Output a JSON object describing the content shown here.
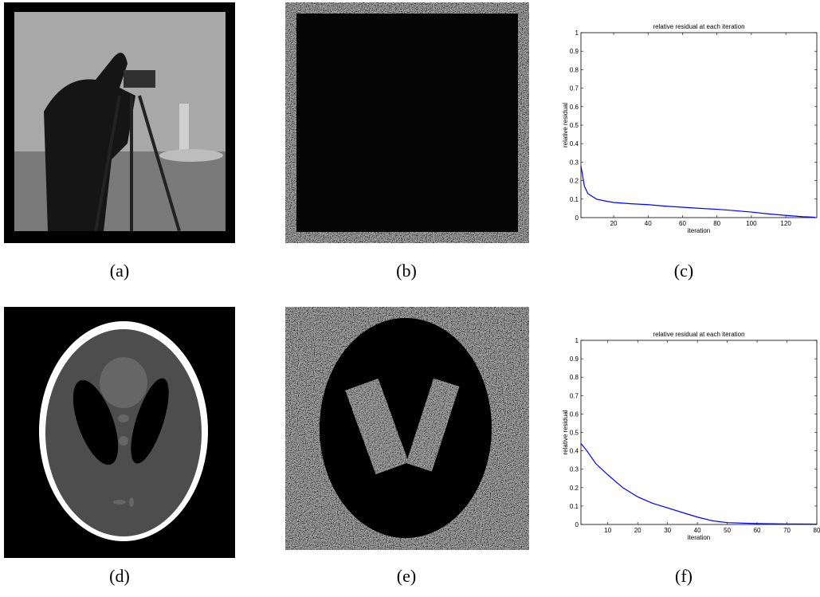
{
  "captions": [
    "(a)",
    "(b)",
    "(c)",
    "(d)",
    "(e)",
    "(f)"
  ],
  "chart_data": [
    {
      "type": "line",
      "title": "relative residual at each iteration",
      "x_label": "iteration",
      "y_label": "relative residual",
      "x": [
        1,
        3,
        5,
        10,
        15,
        20,
        30,
        40,
        50,
        60,
        70,
        80,
        90,
        100,
        110,
        120,
        130,
        137
      ],
      "series": [
        {
          "name": "relative residual",
          "color": "#0000ff",
          "values": [
            0.28,
            0.17,
            0.13,
            0.1,
            0.09,
            0.082,
            0.075,
            0.07,
            0.062,
            0.056,
            0.05,
            0.045,
            0.038,
            0.03,
            0.02,
            0.012,
            0.005,
            0.002
          ]
        }
      ],
      "xlim": [
        1,
        138
      ],
      "xticks": [
        20,
        40,
        60,
        80,
        100,
        120
      ],
      "ylim": [
        0,
        1
      ],
      "yticks": [
        0,
        0.1,
        0.2,
        0.3,
        0.4,
        0.5,
        0.6,
        0.7,
        0.8,
        0.9,
        1
      ]
    },
    {
      "type": "line",
      "title": "relative residual at each iteration",
      "x_label": "iteration",
      "y_label": "relative residual",
      "x": [
        1,
        3,
        6,
        10,
        15,
        20,
        25,
        30,
        35,
        40,
        45,
        50,
        60,
        70,
        80
      ],
      "series": [
        {
          "name": "relative residual",
          "color": "#0000ff",
          "values": [
            0.44,
            0.4,
            0.33,
            0.27,
            0.2,
            0.15,
            0.115,
            0.09,
            0.065,
            0.04,
            0.02,
            0.01,
            0.005,
            0.003,
            0.002
          ]
        }
      ],
      "xlim": [
        1,
        80
      ],
      "xticks": [
        10,
        20,
        30,
        40,
        50,
        60,
        70,
        80
      ],
      "ylim": [
        0,
        1
      ],
      "yticks": [
        0,
        0.1,
        0.2,
        0.3,
        0.4,
        0.5,
        0.6,
        0.7,
        0.8,
        0.9,
        1
      ]
    }
  ]
}
